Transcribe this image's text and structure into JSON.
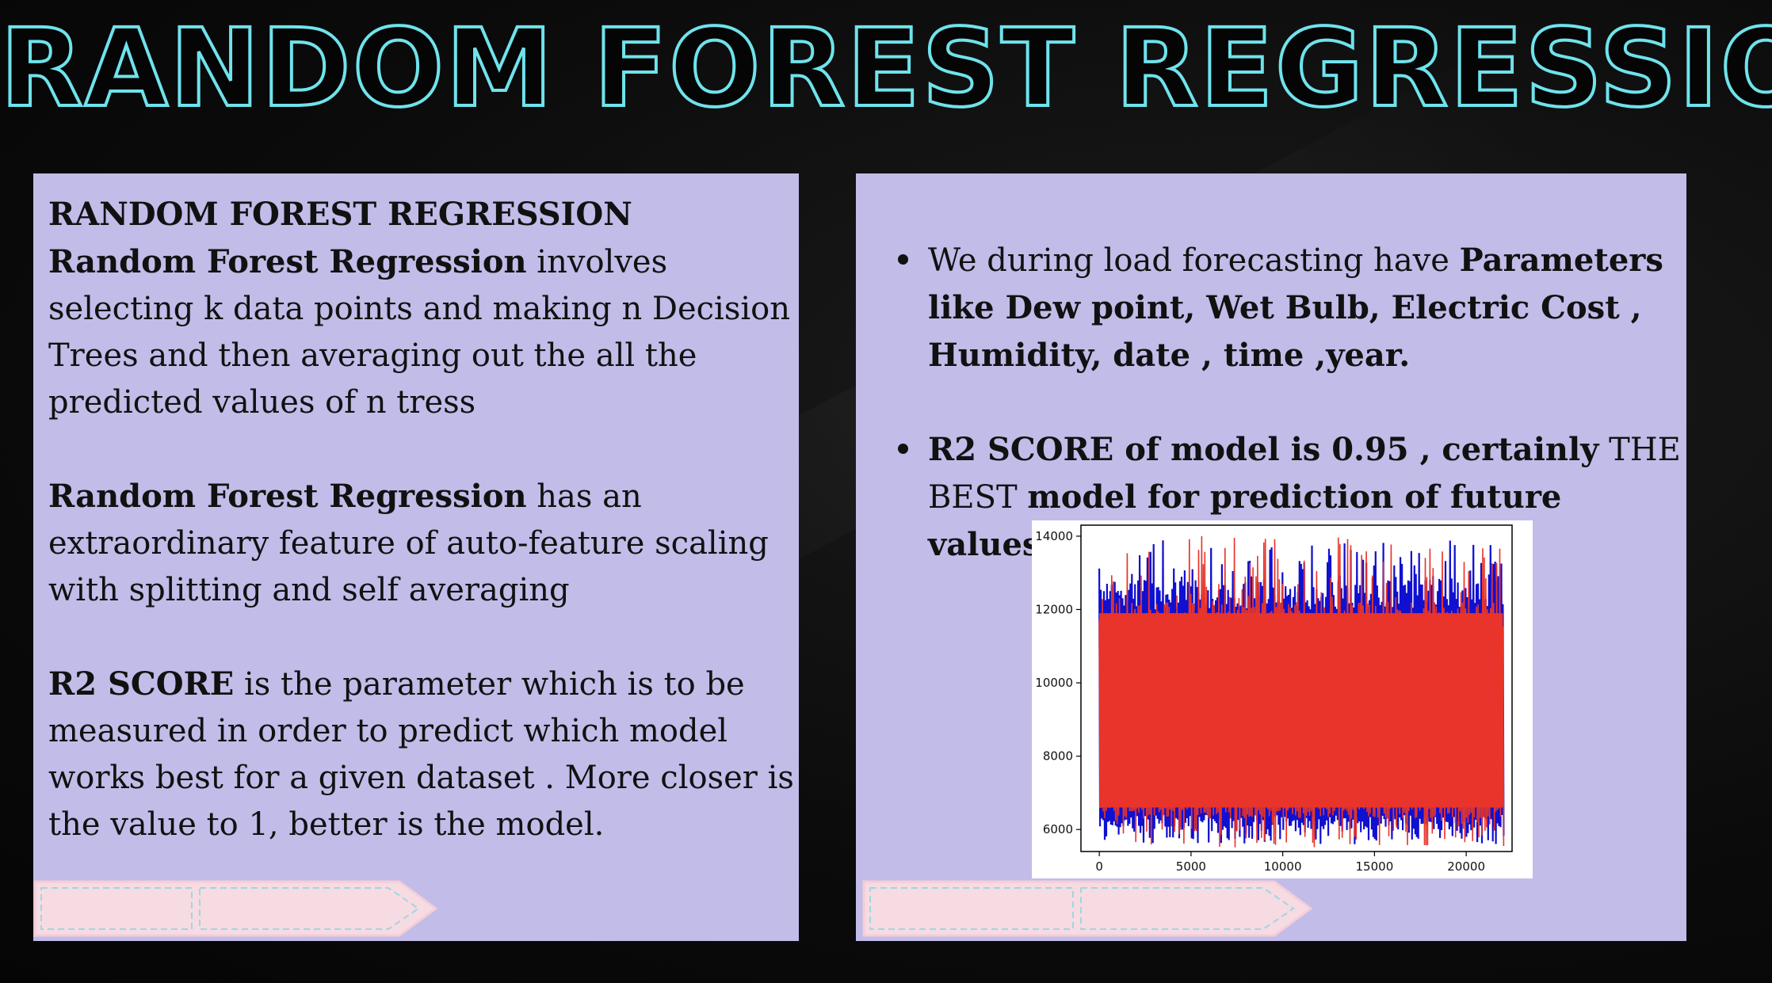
{
  "slide": {
    "title": "RANDOM FOREST REGRESSION"
  },
  "left_panel": {
    "heading": "RANDOM FOREST REGRESSION",
    "p1_bold": "Random Forest Regression",
    "p1_rest": " involves selecting k data points and making n Decision Trees and then averaging out the all the predicted values of n tress",
    "p2_bold": "Random Forest Regression",
    "p2_rest": " has an extraordinary feature of auto-feature scaling with splitting and self averaging",
    "p3_bold": "R2 SCORE",
    "p3_rest": " is the parameter which is to be measured in order to predict which model works best for a given dataset . More closer is the value to 1, better is the model."
  },
  "right_panel": {
    "bullet1_normal": "We during load forecasting have ",
    "bullet1_bold": "Parameters like Dew point, Wet Bulb, Electric Cost , Humidity, date , time ,year.",
    "bullet2_bold": "R2 SCORE of model is 0.95 , certainly",
    "bullet2_normal": "  THE BEST ",
    "bullet2_bold2": "model  for prediction of future values"
  },
  "colors": {
    "title_outline": "#6fe3ec",
    "panel_bg": "#c1bce8",
    "arrow_fill": "#f7dbe2",
    "arrow_dash": "#9fd6e0",
    "series_actual": "#1010d0",
    "series_predicted": "#e8342a"
  },
  "chart_data": {
    "type": "line",
    "title": "",
    "xlabel": "",
    "ylabel": "",
    "xlim": [
      -1000,
      22500
    ],
    "ylim": [
      5400,
      14300
    ],
    "x_ticks": [
      0,
      5000,
      10000,
      15000,
      20000
    ],
    "x_tick_labels": [
      "0",
      "5000",
      "10000",
      "15000",
      "20000"
    ],
    "y_ticks": [
      6000,
      8000,
      10000,
      12000,
      14000
    ],
    "y_tick_labels": [
      "6000",
      "8000",
      "10000",
      "12000",
      "14000"
    ],
    "grid": false,
    "legend": "none",
    "x_range": [
      0,
      22000
    ],
    "series": [
      {
        "color": "#1010d0",
        "band_low": 6000,
        "band_high": 12800,
        "peak_low": 5600,
        "peak_high": 13900
      },
      {
        "color": "#e8342a",
        "band_low": 6300,
        "band_high": 12200,
        "peak_low": 5500,
        "peak_high": 14000
      }
    ]
  }
}
